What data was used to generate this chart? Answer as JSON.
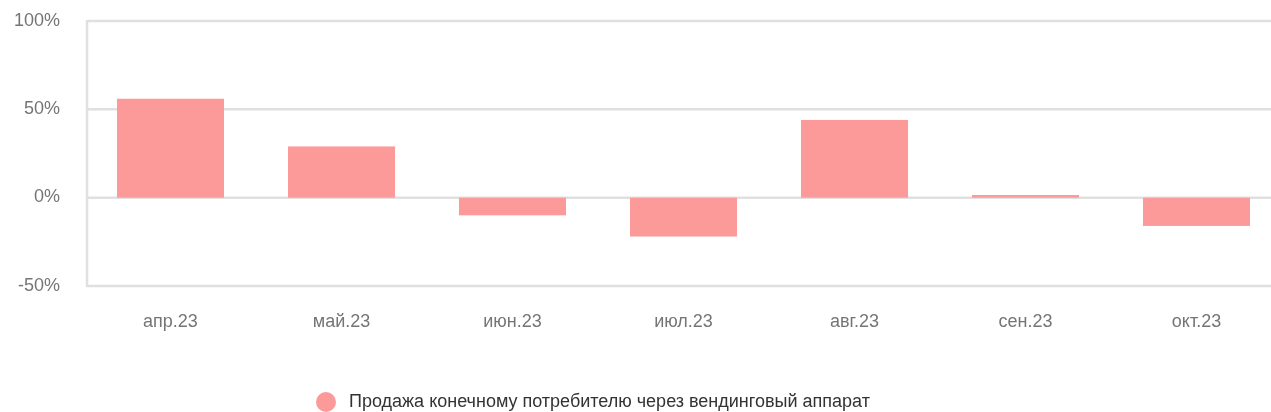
{
  "chart_data": {
    "type": "bar",
    "categories": [
      "апр.23",
      "май.23",
      "июн.23",
      "июл.23",
      "авг.23",
      "сен.23",
      "окт.23"
    ],
    "series": [
      {
        "name": "Продажа конечному потребителю через вендинговый аппарат",
        "color": "#fb9a99",
        "values": [
          56,
          29,
          -10,
          -22,
          44,
          1.5,
          -16
        ]
      }
    ],
    "ylim": [
      -50,
      100
    ],
    "yticks": [
      {
        "value": -50,
        "label": "-50%"
      },
      {
        "value": 0,
        "label": "0%"
      },
      {
        "value": 50,
        "label": "50%"
      },
      {
        "value": 100,
        "label": "100%"
      }
    ],
    "grid": "y",
    "legend": "bottom"
  }
}
